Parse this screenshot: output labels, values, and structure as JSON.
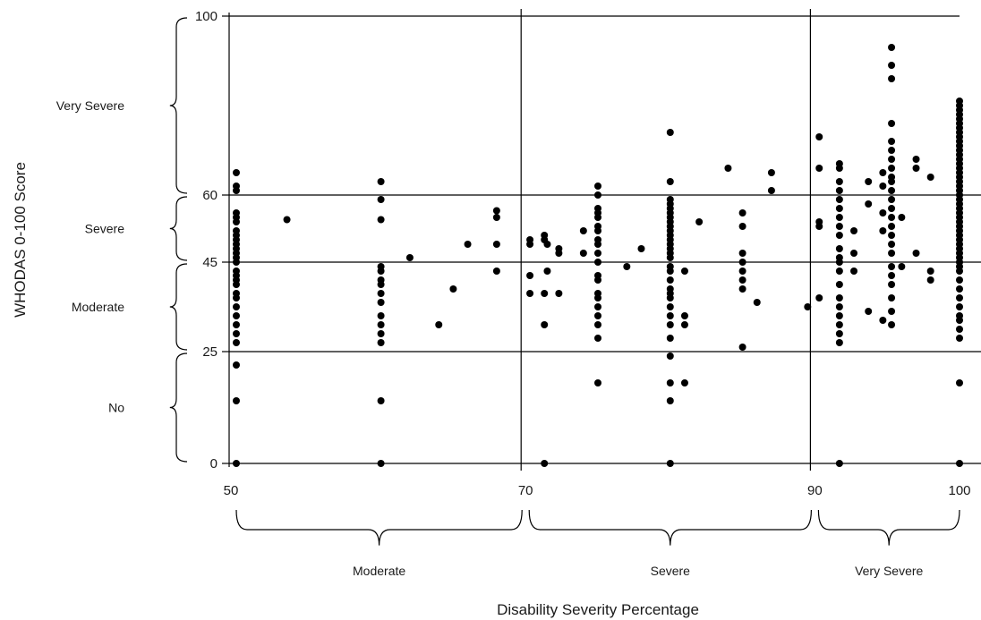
{
  "chart_data": {
    "type": "scatter",
    "title": "",
    "xlabel": "Disability Severity Percentage",
    "ylabel": "WHODAS 0-100 Score",
    "xlim": [
      50,
      100
    ],
    "ylim": [
      0,
      100
    ],
    "x_ticks": [
      "50",
      "70",
      "90",
      "100"
    ],
    "y_ticks": [
      "0",
      "25",
      "45",
      "60",
      "100"
    ],
    "grid": "horizontal lines at 0, 25, 45, 60, 100; vertical lines at 50, 70, 90",
    "y_bands": [
      {
        "label": "No",
        "from": 0,
        "to": 25
      },
      {
        "label": "Moderate",
        "from": 25,
        "to": 45
      },
      {
        "label": "Severe",
        "from": 45,
        "to": 60
      },
      {
        "label": "Very Severe",
        "from": 60,
        "to": 100
      }
    ],
    "x_bands": [
      {
        "label": "Moderate",
        "from": 50,
        "to": 70
      },
      {
        "label": "Severe",
        "from": 70,
        "to": 90
      },
      {
        "label": "Very Severe",
        "from": 90,
        "to": 100
      }
    ],
    "points": [
      [
        50,
        0
      ],
      [
        50,
        14
      ],
      [
        50,
        22
      ],
      [
        50,
        27
      ],
      [
        50,
        29
      ],
      [
        50,
        31
      ],
      [
        50,
        33
      ],
      [
        50,
        35
      ],
      [
        50,
        37
      ],
      [
        50,
        38
      ],
      [
        50,
        40
      ],
      [
        50,
        41
      ],
      [
        50,
        42
      ],
      [
        50,
        43
      ],
      [
        50,
        45
      ],
      [
        50,
        46
      ],
      [
        50,
        47
      ],
      [
        50,
        48
      ],
      [
        50,
        49
      ],
      [
        50,
        50
      ],
      [
        50,
        51
      ],
      [
        50,
        52
      ],
      [
        50,
        54
      ],
      [
        50,
        55
      ],
      [
        50,
        56
      ],
      [
        50,
        61
      ],
      [
        50,
        62
      ],
      [
        50,
        65
      ],
      [
        53.5,
        54.5
      ],
      [
        60,
        0
      ],
      [
        60,
        14
      ],
      [
        60,
        27
      ],
      [
        60,
        29
      ],
      [
        60,
        31
      ],
      [
        60,
        33
      ],
      [
        60,
        36
      ],
      [
        60,
        38
      ],
      [
        60,
        40
      ],
      [
        60,
        41
      ],
      [
        60,
        43
      ],
      [
        60,
        44
      ],
      [
        60,
        54.5
      ],
      [
        60,
        59
      ],
      [
        60,
        63
      ],
      [
        62,
        46
      ],
      [
        64,
        31
      ],
      [
        65,
        39
      ],
      [
        66,
        49
      ],
      [
        68,
        43
      ],
      [
        68,
        49
      ],
      [
        68,
        55
      ],
      [
        68,
        56.5
      ],
      [
        70.3,
        38
      ],
      [
        70.3,
        42
      ],
      [
        70.3,
        49
      ],
      [
        70.3,
        50
      ],
      [
        71.3,
        0
      ],
      [
        71.3,
        31
      ],
      [
        71.3,
        38
      ],
      [
        71.3,
        50
      ],
      [
        71.3,
        51
      ],
      [
        71.5,
        43
      ],
      [
        71.5,
        49
      ],
      [
        72.3,
        38
      ],
      [
        72.3,
        47
      ],
      [
        72.3,
        48
      ],
      [
        74,
        47
      ],
      [
        74,
        52
      ],
      [
        75,
        18
      ],
      [
        75,
        28
      ],
      [
        75,
        31
      ],
      [
        75,
        33
      ],
      [
        75,
        35
      ],
      [
        75,
        37
      ],
      [
        75,
        38
      ],
      [
        75,
        41
      ],
      [
        75,
        42
      ],
      [
        75,
        45
      ],
      [
        75,
        47
      ],
      [
        75,
        49
      ],
      [
        75,
        50
      ],
      [
        75,
        52
      ],
      [
        75,
        53
      ],
      [
        75,
        55
      ],
      [
        75,
        56
      ],
      [
        75,
        57
      ],
      [
        75,
        60
      ],
      [
        75,
        62
      ],
      [
        77,
        44
      ],
      [
        78,
        48
      ],
      [
        80,
        0
      ],
      [
        80,
        14
      ],
      [
        80,
        18
      ],
      [
        80,
        24
      ],
      [
        80,
        28
      ],
      [
        80,
        31
      ],
      [
        80,
        33
      ],
      [
        80,
        35
      ],
      [
        80,
        37
      ],
      [
        80,
        38
      ],
      [
        80,
        39
      ],
      [
        80,
        41
      ],
      [
        80,
        43
      ],
      [
        80,
        44
      ],
      [
        80,
        46
      ],
      [
        80,
        47
      ],
      [
        80,
        48
      ],
      [
        80,
        49
      ],
      [
        80,
        50
      ],
      [
        80,
        51
      ],
      [
        80,
        52
      ],
      [
        80,
        53
      ],
      [
        80,
        54
      ],
      [
        80,
        55
      ],
      [
        80,
        56
      ],
      [
        80,
        57
      ],
      [
        80,
        58
      ],
      [
        80,
        59
      ],
      [
        80,
        63
      ],
      [
        80,
        74
      ],
      [
        81,
        18
      ],
      [
        81,
        31
      ],
      [
        81,
        33
      ],
      [
        81,
        43
      ],
      [
        82,
        54
      ],
      [
        84,
        66
      ],
      [
        85,
        26
      ],
      [
        85,
        39
      ],
      [
        85,
        41
      ],
      [
        85,
        43
      ],
      [
        85,
        45
      ],
      [
        85,
        47
      ],
      [
        85,
        53
      ],
      [
        85,
        56
      ],
      [
        86,
        36
      ],
      [
        87,
        61
      ],
      [
        87,
        65
      ],
      [
        89.5,
        35
      ],
      [
        90.3,
        37
      ],
      [
        90.3,
        53
      ],
      [
        90.3,
        54
      ],
      [
        90.3,
        66
      ],
      [
        90.3,
        73
      ],
      [
        91.7,
        0
      ],
      [
        91.7,
        27
      ],
      [
        91.7,
        29
      ],
      [
        91.7,
        31
      ],
      [
        91.7,
        33
      ],
      [
        91.7,
        35
      ],
      [
        91.7,
        37
      ],
      [
        91.7,
        40
      ],
      [
        91.7,
        43
      ],
      [
        91.7,
        45
      ],
      [
        91.7,
        46
      ],
      [
        91.7,
        48
      ],
      [
        91.7,
        51
      ],
      [
        91.7,
        53
      ],
      [
        91.7,
        55
      ],
      [
        91.7,
        57
      ],
      [
        91.7,
        59
      ],
      [
        91.7,
        61
      ],
      [
        91.7,
        63
      ],
      [
        91.7,
        66
      ],
      [
        91.7,
        67
      ],
      [
        92.7,
        43
      ],
      [
        92.7,
        47
      ],
      [
        92.7,
        52
      ],
      [
        93.7,
        34
      ],
      [
        93.7,
        58
      ],
      [
        93.7,
        63
      ],
      [
        94.7,
        32
      ],
      [
        94.7,
        52
      ],
      [
        94.7,
        56
      ],
      [
        94.7,
        62
      ],
      [
        94.7,
        65
      ],
      [
        95.3,
        31
      ],
      [
        95.3,
        34
      ],
      [
        95.3,
        37
      ],
      [
        95.3,
        40
      ],
      [
        95.3,
        42
      ],
      [
        95.3,
        44
      ],
      [
        95.3,
        47
      ],
      [
        95.3,
        49
      ],
      [
        95.3,
        51
      ],
      [
        95.3,
        53
      ],
      [
        95.3,
        55
      ],
      [
        95.3,
        57
      ],
      [
        95.3,
        59
      ],
      [
        95.3,
        61
      ],
      [
        95.3,
        63
      ],
      [
        95.3,
        64
      ],
      [
        95.3,
        66
      ],
      [
        95.3,
        68
      ],
      [
        95.3,
        70
      ],
      [
        95.3,
        72
      ],
      [
        95.3,
        76
      ],
      [
        95.3,
        86
      ],
      [
        95.3,
        89
      ],
      [
        95.3,
        93
      ],
      [
        96,
        44
      ],
      [
        96,
        55
      ],
      [
        97,
        47
      ],
      [
        97,
        66
      ],
      [
        97,
        68
      ],
      [
        98,
        41
      ],
      [
        98,
        43
      ],
      [
        98,
        64
      ],
      [
        100,
        0
      ],
      [
        100,
        18
      ],
      [
        100,
        28
      ],
      [
        100,
        30
      ],
      [
        100,
        32
      ],
      [
        100,
        33
      ],
      [
        100,
        35
      ],
      [
        100,
        37
      ],
      [
        100,
        39
      ],
      [
        100,
        41
      ],
      [
        100,
        43
      ],
      [
        100,
        44
      ],
      [
        100,
        45
      ],
      [
        100,
        46
      ],
      [
        100,
        47
      ],
      [
        100,
        48
      ],
      [
        100,
        49
      ],
      [
        100,
        50
      ],
      [
        100,
        51
      ],
      [
        100,
        52
      ],
      [
        100,
        53
      ],
      [
        100,
        54
      ],
      [
        100,
        55
      ],
      [
        100,
        56
      ],
      [
        100,
        57
      ],
      [
        100,
        58
      ],
      [
        100,
        59
      ],
      [
        100,
        60
      ],
      [
        100,
        61
      ],
      [
        100,
        62
      ],
      [
        100,
        63
      ],
      [
        100,
        64
      ],
      [
        100,
        65
      ],
      [
        100,
        66
      ],
      [
        100,
        67
      ],
      [
        100,
        68
      ],
      [
        100,
        69
      ],
      [
        100,
        70
      ],
      [
        100,
        71
      ],
      [
        100,
        72
      ],
      [
        100,
        73
      ],
      [
        100,
        74
      ],
      [
        100,
        75
      ],
      [
        100,
        76
      ],
      [
        100,
        77
      ],
      [
        100,
        78
      ],
      [
        100,
        79
      ],
      [
        100,
        80
      ],
      [
        100,
        81
      ]
    ]
  }
}
